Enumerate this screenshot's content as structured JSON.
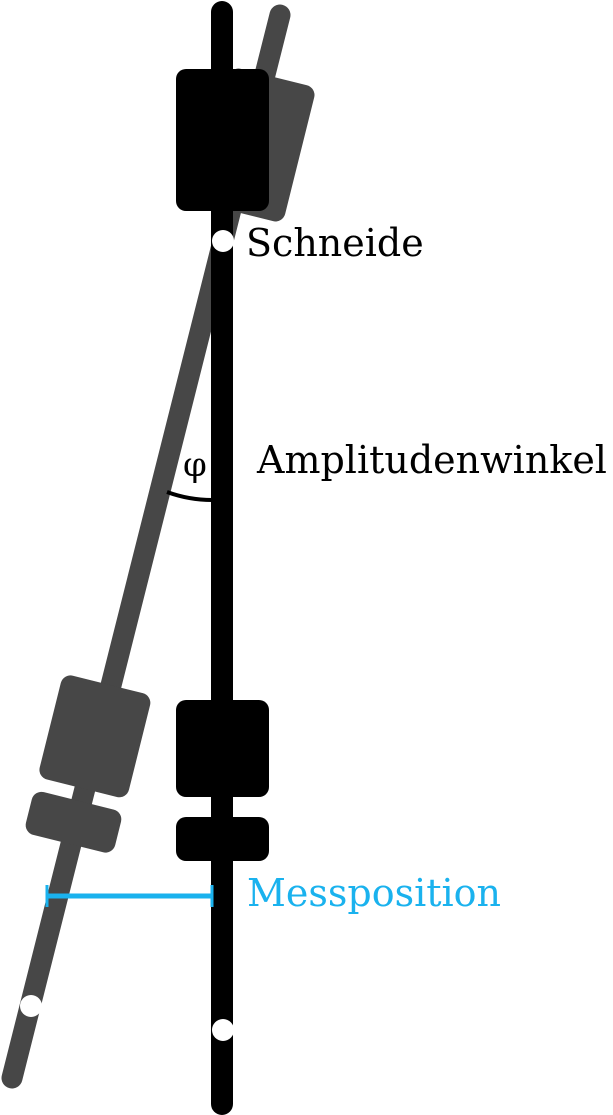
{
  "labels": {
    "knife_edge": "Schneide",
    "amplitude": "Amplitudenwinkel",
    "phi": "φ",
    "measure": "Messposition"
  },
  "colors": {
    "pendulum_rest": "#000000",
    "pendulum_deflected": "#474747",
    "pivot_points": "#ffffff",
    "measure_marker": "#1ab2ee",
    "text": "#000000"
  }
}
